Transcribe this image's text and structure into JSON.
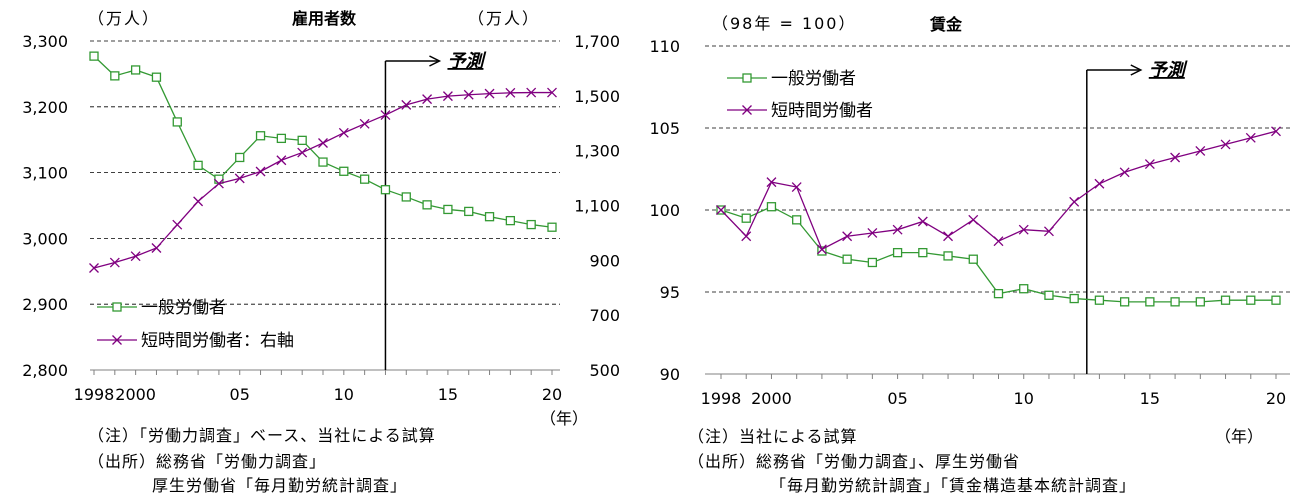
{
  "colors": {
    "general": "#339933",
    "part_time": "#800080",
    "grid": "#000000",
    "axis": "#808080"
  },
  "chart_data": [
    {
      "type": "line",
      "title": "雇用者数",
      "unit_left": "（万人）",
      "unit_right": "（万人）",
      "x_tick_labels": [
        "1998",
        "2000",
        "05",
        "10",
        "15",
        "20"
      ],
      "x_unit": "（年）",
      "x": [
        1998,
        1999,
        2000,
        2001,
        2002,
        2003,
        2004,
        2005,
        2006,
        2007,
        2008,
        2009,
        2010,
        2011,
        2012,
        2013,
        2014,
        2015,
        2016,
        2017,
        2018,
        2019,
        2020
      ],
      "ylim_left": [
        2800,
        3300
      ],
      "yticks_left": [
        "2,800",
        "2,900",
        "3,000",
        "3,100",
        "3,200",
        "3,300"
      ],
      "ylim_right": [
        500,
        1700
      ],
      "yticks_right": [
        "500",
        "700",
        "900",
        "1,100",
        "1,300",
        "1,500",
        "1,700"
      ],
      "forecast_start": 2012,
      "forecast_label": "予測",
      "series": [
        {
          "name": "一般労働者",
          "axis": "left",
          "marker": "square",
          "values": [
            3277,
            3247,
            3256,
            3245,
            3177,
            3111,
            3090,
            3123,
            3156,
            3152,
            3149,
            3116,
            3102,
            3090,
            3074,
            3063,
            3051,
            3044,
            3041,
            3033,
            3027,
            3021,
            3017
          ]
        },
        {
          "name": "短時間労働者：右軸",
          "axis": "right",
          "marker": "x",
          "values": [
            872,
            892,
            915,
            945,
            1030,
            1115,
            1180,
            1199,
            1224,
            1265,
            1293,
            1328,
            1365,
            1398,
            1430,
            1467,
            1488,
            1499,
            1504,
            1508,
            1511,
            1512,
            1512
          ]
        }
      ],
      "notes": [
        "（注）「労働力調査」ベース、当社による試算",
        "（出所）総務省「労働力調査」",
        "厚生労働省「毎月勤労統計調査」"
      ]
    },
    {
      "type": "line",
      "title": "賃金",
      "unit_left": "（98年 = 100）",
      "x_tick_labels": [
        "1998",
        "2000",
        "05",
        "10",
        "15",
        "20"
      ],
      "x_unit": "（年）",
      "x": [
        1998,
        1999,
        2000,
        2001,
        2002,
        2003,
        2004,
        2005,
        2006,
        2007,
        2008,
        2009,
        2010,
        2011,
        2012,
        2013,
        2014,
        2015,
        2016,
        2017,
        2018,
        2019,
        2020
      ],
      "ylim": [
        90,
        110
      ],
      "yticks": [
        "90",
        "95",
        "100",
        "105",
        "110"
      ],
      "forecast_start": 2012.5,
      "forecast_label": "予測",
      "series": [
        {
          "name": "一般労働者",
          "marker": "square",
          "values": [
            100.0,
            99.5,
            100.2,
            99.4,
            97.5,
            97.0,
            96.8,
            97.4,
            97.4,
            97.2,
            97.0,
            94.9,
            95.2,
            94.8,
            94.6,
            94.5,
            94.4,
            94.4,
            94.4,
            94.4,
            94.5,
            94.5,
            94.5
          ]
        },
        {
          "name": "短時間労働者",
          "marker": "x",
          "values": [
            100.0,
            98.4,
            101.7,
            101.4,
            97.6,
            98.4,
            98.6,
            98.8,
            99.3,
            98.4,
            99.4,
            98.1,
            98.8,
            98.7,
            100.5,
            101.6,
            102.3,
            102.8,
            103.2,
            103.6,
            104.0,
            104.4,
            104.8
          ]
        }
      ],
      "notes": [
        "（注）当社による試算",
        "（出所）総務省「労働力調査」、厚生労働省",
        "「毎月勤労統計調査」「賃金構造基本統計調査」"
      ]
    }
  ]
}
